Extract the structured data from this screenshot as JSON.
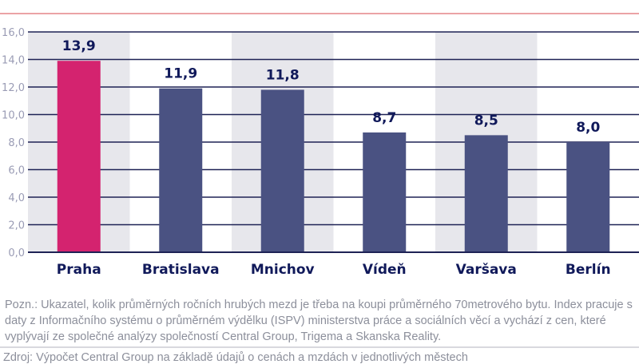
{
  "chart_data": {
    "type": "bar",
    "categories": [
      "Praha",
      "Bratislava",
      "Mnichov",
      "Vídeň",
      "Varšava",
      "Berlín"
    ],
    "values": [
      13.9,
      11.9,
      11.8,
      8.7,
      8.5,
      8.0
    ],
    "data_labels": [
      "13,9",
      "11,9",
      "11,8",
      "8,7",
      "8,5",
      "8,0"
    ],
    "ylim": [
      0,
      16
    ],
    "yticks": [
      "0,0",
      "2,0",
      "4,0",
      "6,0",
      "8,0",
      "10,0",
      "12,0",
      "14,0",
      "16,0"
    ],
    "grid": true,
    "colors": {
      "highlight": "#d4236f",
      "bar": "#4a5282",
      "band": "#e7e7ec",
      "grid": "#1e2255",
      "label": "#10195a",
      "tick": "#9a9cb5"
    },
    "highlight_index": 0
  },
  "note": "Pozn.: Ukazatel, kolik průměrných ročních hrubých mezd je třeba na koupi průměrného 70metrového bytu. Index pracuje s daty z Informačního systému o průměrném výdělku (ISPV) ministerstva práce a sociálních věcí a vychází z cen, které vyplývají ze společné analýzy společností Central Group, Trigema a Skanska Reality.",
  "source": "Zdroj: Výpočet Central Group na základě údajů o cenách a mzdách v jednotlivých městech"
}
